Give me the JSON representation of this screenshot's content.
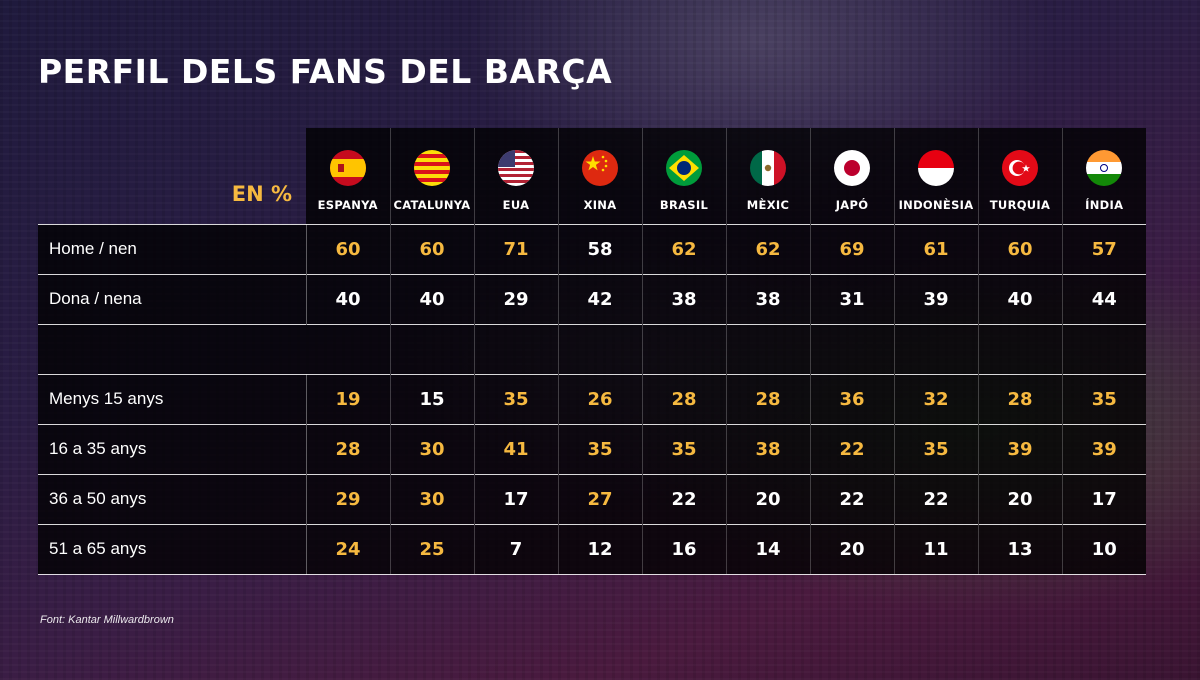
{
  "title": "PERFIL DELS FANS DEL BARÇA",
  "unit_label": "EN %",
  "source": "Font: Kantar Millwardbrown",
  "colors": {
    "highlight": "#f6b940",
    "normal": "#ffffff"
  },
  "countries": [
    {
      "name": "ESPANYA",
      "flag": "flag-spain-icon"
    },
    {
      "name": "CATALUNYA",
      "flag": "flag-catalonia-icon"
    },
    {
      "name": "EUA",
      "flag": "flag-usa-icon"
    },
    {
      "name": "XINA",
      "flag": "flag-china-icon"
    },
    {
      "name": "BRASIL",
      "flag": "flag-brazil-icon"
    },
    {
      "name": "MÈXIC",
      "flag": "flag-mexico-icon"
    },
    {
      "name": "JAPÓ",
      "flag": "flag-japan-icon"
    },
    {
      "name": "INDONÈSIA",
      "flag": "flag-indonesia-icon"
    },
    {
      "name": "TURQUIA",
      "flag": "flag-turkey-icon"
    },
    {
      "name": "ÍNDIA",
      "flag": "flag-india-icon"
    }
  ],
  "rows": [
    {
      "label": "Home / nen",
      "values": [
        "60",
        "60",
        "71",
        "58",
        "62",
        "62",
        "69",
        "61",
        "60",
        "57"
      ],
      "highlight": [
        true,
        true,
        true,
        false,
        true,
        true,
        true,
        true,
        true,
        true
      ]
    },
    {
      "label": "Dona / nena",
      "values": [
        "40",
        "40",
        "29",
        "42",
        "38",
        "38",
        "31",
        "39",
        "40",
        "44"
      ],
      "highlight": [
        false,
        false,
        false,
        false,
        false,
        false,
        false,
        false,
        false,
        false
      ]
    },
    {
      "label": "",
      "values": [],
      "highlight": []
    },
    {
      "label": "Menys 15 anys",
      "values": [
        "19",
        "15",
        "35",
        "26",
        "28",
        "28",
        "36",
        "32",
        "28",
        "35"
      ],
      "highlight": [
        true,
        false,
        true,
        true,
        true,
        true,
        true,
        true,
        true,
        true
      ]
    },
    {
      "label": "16 a 35 anys",
      "values": [
        "28",
        "30",
        "41",
        "35",
        "35",
        "38",
        "22",
        "35",
        "39",
        "39"
      ],
      "highlight": [
        true,
        true,
        true,
        true,
        true,
        true,
        true,
        true,
        true,
        true
      ]
    },
    {
      "label": "36 a 50 anys",
      "values": [
        "29",
        "30",
        "17",
        "27",
        "22",
        "20",
        "22",
        "22",
        "20",
        "17"
      ],
      "highlight": [
        true,
        true,
        false,
        true,
        false,
        false,
        false,
        false,
        false,
        false
      ]
    },
    {
      "label": "51 a 65 anys",
      "values": [
        "24",
        "25",
        "7",
        "12",
        "16",
        "14",
        "20",
        "11",
        "13",
        "10"
      ],
      "highlight": [
        true,
        true,
        false,
        false,
        false,
        false,
        false,
        false,
        false,
        false
      ]
    }
  ],
  "chart_data": {
    "type": "table",
    "title": "PERFIL DELS FANS DEL BARÇA",
    "unit": "EN %",
    "columns": [
      "ESPANYA",
      "CATALUNYA",
      "EUA",
      "XINA",
      "BRASIL",
      "MÈXIC",
      "JAPÓ",
      "INDONÈSIA",
      "TURQUIA",
      "ÍNDIA"
    ],
    "rows": [
      {
        "label": "Home / nen",
        "values": [
          60,
          60,
          71,
          58,
          62,
          62,
          69,
          61,
          60,
          57
        ]
      },
      {
        "label": "Dona / nena",
        "values": [
          40,
          40,
          29,
          42,
          38,
          38,
          31,
          39,
          40,
          44
        ]
      },
      {
        "label": "Menys 15 anys",
        "values": [
          19,
          15,
          35,
          26,
          28,
          28,
          36,
          32,
          28,
          35
        ]
      },
      {
        "label": "16 a 35 anys",
        "values": [
          28,
          30,
          41,
          35,
          35,
          38,
          22,
          35,
          39,
          39
        ]
      },
      {
        "label": "36 a 50 anys",
        "values": [
          29,
          30,
          17,
          27,
          22,
          20,
          22,
          22,
          20,
          17
        ]
      },
      {
        "label": "51 a 65 anys",
        "values": [
          24,
          25,
          7,
          12,
          16,
          14,
          20,
          11,
          13,
          10
        ]
      }
    ],
    "source": "Font: Kantar Millwardbrown"
  }
}
